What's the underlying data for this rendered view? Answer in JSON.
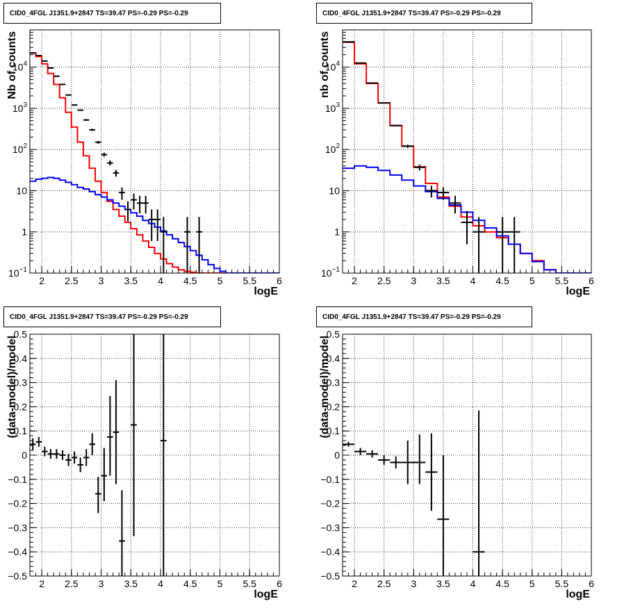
{
  "chart_data": [
    {
      "type": "histogram",
      "title": "CID0_4FGL J1351.9+2847 TS=39.47 PS=-0.29 PS=-0.29",
      "xlabel": "logE",
      "ylabel": "Nb of counts",
      "yscale": "log",
      "xlim": [
        1.8,
        6.0
      ],
      "ylim": [
        0.1,
        80000
      ],
      "grid": true,
      "x_ticks": [
        "2",
        "2.5",
        "3",
        "3.5",
        "4",
        "4.5",
        "5",
        "5.5",
        "6"
      ],
      "y_ticks": [
        "10^-1",
        "1",
        "10",
        "10^2",
        "10^3",
        "10^4"
      ],
      "y_tick_labels": [
        {
          "base": "10",
          "exp": "−1"
        },
        {
          "base": "1",
          "exp": ""
        },
        {
          "base": "10",
          "exp": ""
        },
        {
          "base": "10",
          "exp": "2"
        },
        {
          "base": "10",
          "exp": "3"
        },
        {
          "base": "10",
          "exp": "4"
        }
      ],
      "series": [
        {
          "kind": "step",
          "color": "#ff0000",
          "bin_edges": [
            1.8,
            1.9,
            2.0,
            2.1,
            2.2,
            2.3,
            2.4,
            2.5,
            2.6,
            2.7,
            2.8,
            2.9,
            3.0,
            3.1,
            3.2,
            3.3,
            3.4,
            3.5,
            3.6,
            3.7,
            3.8,
            3.9,
            4.0,
            4.1,
            4.2,
            4.3,
            4.4,
            4.5,
            4.6,
            4.7,
            4.8,
            4.9,
            5.0,
            5.1,
            5.2,
            5.3,
            5.4,
            5.5,
            5.6,
            5.7,
            5.8,
            5.9,
            6.0
          ],
          "values": [
            22000,
            18000,
            12000,
            7000,
            3800,
            1800,
            800,
            350,
            150,
            70,
            35,
            17,
            9,
            5.5,
            3.5,
            2.4,
            1.7,
            1.2,
            0.85,
            0.6,
            0.42,
            0.3,
            0.22,
            0.17,
            0.14,
            0.12,
            0.11,
            0.105,
            0.1,
            0.1,
            0.1,
            0.1,
            0.1,
            0.1,
            0.1,
            0.1,
            0.1,
            0.1,
            0.1,
            0.1,
            0.1,
            0.1
          ]
        },
        {
          "kind": "step",
          "color": "#0000ff",
          "bin_edges": [
            1.8,
            1.9,
            2.0,
            2.1,
            2.2,
            2.3,
            2.4,
            2.5,
            2.6,
            2.7,
            2.8,
            2.9,
            3.0,
            3.1,
            3.2,
            3.3,
            3.4,
            3.5,
            3.6,
            3.7,
            3.8,
            3.9,
            4.0,
            4.1,
            4.2,
            4.3,
            4.4,
            4.5,
            4.6,
            4.7,
            4.8,
            4.9,
            5.0,
            5.1,
            5.2,
            5.3,
            5.4,
            5.5,
            5.6,
            5.7,
            5.8,
            5.9,
            6.0
          ],
          "values": [
            17,
            19,
            20,
            21,
            20,
            18,
            16,
            14,
            12,
            11,
            9.5,
            8,
            7,
            6,
            5,
            4.2,
            3.5,
            2.9,
            2.4,
            1.9,
            1.6,
            1.3,
            1.05,
            0.85,
            0.68,
            0.55,
            0.44,
            0.35,
            0.27,
            0.21,
            0.16,
            0.13,
            0.11,
            0.1,
            0.1,
            0.1,
            0.1,
            0.1,
            0.1,
            0.1,
            0.1,
            0.1
          ]
        },
        {
          "kind": "errorbars",
          "color": "#000000",
          "points": [
            {
              "x": 1.85,
              "y": 22000,
              "xerr": 0.05,
              "ylo": 21700,
              "yhi": 22300
            },
            {
              "x": 1.95,
              "y": 19000,
              "xerr": 0.05,
              "ylo": 18700,
              "yhi": 19300
            },
            {
              "x": 2.05,
              "y": 14000,
              "xerr": 0.05,
              "ylo": 13800,
              "yhi": 14200
            },
            {
              "x": 2.15,
              "y": 9500,
              "xerr": 0.05,
              "ylo": 9300,
              "yhi": 9700
            },
            {
              "x": 2.25,
              "y": 6000,
              "xerr": 0.05,
              "ylo": 5850,
              "yhi": 6150
            },
            {
              "x": 2.35,
              "y": 3800,
              "xerr": 0.05,
              "ylo": 3700,
              "yhi": 3900
            },
            {
              "x": 2.45,
              "y": 2100,
              "xerr": 0.05,
              "ylo": 2050,
              "yhi": 2150
            },
            {
              "x": 2.55,
              "y": 1200,
              "xerr": 0.05,
              "ylo": 1160,
              "yhi": 1240
            },
            {
              "x": 2.65,
              "y": 900,
              "xerr": 0.05,
              "ylo": 870,
              "yhi": 930
            },
            {
              "x": 2.75,
              "y": 520,
              "xerr": 0.05,
              "ylo": 495,
              "yhi": 545
            },
            {
              "x": 2.85,
              "y": 300,
              "xerr": 0.05,
              "ylo": 283,
              "yhi": 317
            },
            {
              "x": 2.95,
              "y": 150,
              "xerr": 0.05,
              "ylo": 138,
              "yhi": 162
            },
            {
              "x": 3.05,
              "y": 75,
              "xerr": 0.05,
              "ylo": 67,
              "yhi": 84
            },
            {
              "x": 3.15,
              "y": 47,
              "xerr": 0.05,
              "ylo": 41,
              "yhi": 54
            },
            {
              "x": 3.25,
              "y": 27,
              "xerr": 0.05,
              "ylo": 22,
              "yhi": 32
            },
            {
              "x": 3.35,
              "y": 9,
              "xerr": 0.05,
              "ylo": 6,
              "yhi": 12
            },
            {
              "x": 3.45,
              "y": 3.5,
              "xerr": 0.05,
              "ylo": 1.8,
              "yhi": 5.5
            },
            {
              "x": 3.55,
              "y": 6,
              "xerr": 0.05,
              "ylo": 3.5,
              "yhi": 8.5
            },
            {
              "x": 3.65,
              "y": 5,
              "xerr": 0.05,
              "ylo": 2.8,
              "yhi": 7.5
            },
            {
              "x": 3.75,
              "y": 5,
              "xerr": 0.05,
              "ylo": 2.8,
              "yhi": 7.5
            },
            {
              "x": 3.85,
              "y": 2,
              "xerr": 0.05,
              "ylo": 0.6,
              "yhi": 3.5
            },
            {
              "x": 3.95,
              "y": 2,
              "xerr": 0.05,
              "ylo": 0.6,
              "yhi": 3.5
            },
            {
              "x": 4.05,
              "y": 1,
              "xerr": 0.05,
              "ylo": 0.1,
              "yhi": 2.3
            },
            {
              "x": 4.45,
              "y": 1,
              "xerr": 0.05,
              "ylo": 0.1,
              "yhi": 2.3
            },
            {
              "x": 4.65,
              "y": 1,
              "xerr": 0.05,
              "ylo": 0.1,
              "yhi": 2.3
            }
          ]
        }
      ]
    },
    {
      "type": "histogram",
      "title": "CID0_4FGL J1351.9+2847 TS=39.47 PS=-0.29 PS=-0.29",
      "xlabel": "logE",
      "ylabel": "nb of counts",
      "yscale": "log",
      "xlim": [
        1.8,
        6.0
      ],
      "ylim": [
        0.1,
        80000
      ],
      "grid": true,
      "x_ticks": [
        "2",
        "2.5",
        "3",
        "3.5",
        "4",
        "4.5",
        "5",
        "5.5",
        "6"
      ],
      "y_ticks": [
        "10^-1",
        "1",
        "10",
        "10^2",
        "10^3",
        "10^4"
      ],
      "y_tick_labels": [
        {
          "base": "10",
          "exp": "−1"
        },
        {
          "base": "1",
          "exp": ""
        },
        {
          "base": "10",
          "exp": ""
        },
        {
          "base": "10",
          "exp": "2"
        },
        {
          "base": "10",
          "exp": "3"
        },
        {
          "base": "10",
          "exp": "4"
        }
      ],
      "series": [
        {
          "kind": "step",
          "color": "#ff0000",
          "bin_edges": [
            1.8,
            2.0,
            2.2,
            2.4,
            2.6,
            2.8,
            3.0,
            3.2,
            3.4,
            3.6,
            3.8,
            4.0,
            4.2,
            4.4,
            4.6,
            4.8,
            5.0,
            5.2,
            5.4,
            5.6,
            5.8,
            6.0
          ],
          "values": [
            40000,
            12000,
            4000,
            1350,
            380,
            120,
            38,
            15,
            7,
            4.2,
            2.3,
            1.4,
            1.0,
            0.72,
            0.5,
            0.3,
            0.2,
            0.12,
            0.1,
            0.1,
            0.1
          ]
        },
        {
          "kind": "step",
          "color": "#0000ff",
          "bin_edges": [
            1.8,
            2.0,
            2.2,
            2.4,
            2.6,
            2.8,
            3.0,
            3.2,
            3.4,
            3.6,
            3.8,
            4.0,
            4.2,
            4.4,
            4.6,
            4.8,
            5.0,
            5.2,
            5.4,
            5.6,
            5.8,
            6.0
          ],
          "values": [
            35,
            40,
            37,
            31,
            24,
            18,
            13,
            9.5,
            6.5,
            4.5,
            3.0,
            1.9,
            1.25,
            0.8,
            0.5,
            0.3,
            0.19,
            0.12,
            0.1,
            0.1,
            0.1
          ]
        },
        {
          "kind": "errorbars",
          "color": "#000000",
          "points": [
            {
              "x": 1.9,
              "y": 41000,
              "xerr": 0.1,
              "ylo": 40500,
              "yhi": 41500
            },
            {
              "x": 2.1,
              "y": 12500,
              "xerr": 0.1,
              "ylo": 12300,
              "yhi": 12700
            },
            {
              "x": 2.3,
              "y": 4100,
              "xerr": 0.1,
              "ylo": 4000,
              "yhi": 4200
            },
            {
              "x": 2.5,
              "y": 1350,
              "xerr": 0.1,
              "ylo": 1310,
              "yhi": 1390
            },
            {
              "x": 2.7,
              "y": 380,
              "xerr": 0.1,
              "ylo": 362,
              "yhi": 398
            },
            {
              "x": 2.9,
              "y": 120,
              "xerr": 0.1,
              "ylo": 110,
              "yhi": 131
            },
            {
              "x": 3.1,
              "y": 37,
              "xerr": 0.1,
              "ylo": 31,
              "yhi": 43
            },
            {
              "x": 3.3,
              "y": 10,
              "xerr": 0.1,
              "ylo": 6.8,
              "yhi": 13.2
            },
            {
              "x": 3.5,
              "y": 9,
              "xerr": 0.1,
              "ylo": 6,
              "yhi": 12
            },
            {
              "x": 3.7,
              "y": 5,
              "xerr": 0.1,
              "ylo": 2.8,
              "yhi": 7.5
            },
            {
              "x": 3.9,
              "y": 1.7,
              "xerr": 0.1,
              "ylo": 0.5,
              "yhi": 3.2
            },
            {
              "x": 4.1,
              "y": 1,
              "xerr": 0.1,
              "ylo": 0.1,
              "yhi": 2.3
            },
            {
              "x": 4.5,
              "y": 1,
              "xerr": 0.1,
              "ylo": 0.1,
              "yhi": 2.3
            },
            {
              "x": 4.7,
              "y": 1,
              "xerr": 0.1,
              "ylo": 0.1,
              "yhi": 2.3
            }
          ]
        }
      ]
    },
    {
      "type": "scatter",
      "title": "CID0_4FGL J1351.9+2847 TS=39.47 PS=-0.29 PS=-0.29",
      "xlabel": "logE",
      "ylabel": "(data-model)/model",
      "yscale": "linear",
      "xlim": [
        1.8,
        6.0
      ],
      "ylim": [
        -0.5,
        0.5
      ],
      "grid": true,
      "x_ticks": [
        "2",
        "2.5",
        "3",
        "3.5",
        "4",
        "4.5",
        "5",
        "5.5",
        "6"
      ],
      "y_ticks": [
        "−0.5",
        "−0.4",
        "−0.3",
        "−0.2",
        "−0.1",
        "0",
        "0.1",
        "0.2",
        "0.3",
        "0.4",
        "0.5"
      ],
      "series": [
        {
          "kind": "errorbars",
          "color": "#000000",
          "points": [
            {
              "x": 1.85,
              "y": 0.045,
              "xerr": 0.05,
              "ylo": 0.02,
              "yhi": 0.07
            },
            {
              "x": 1.95,
              "y": 0.055,
              "xerr": 0.05,
              "ylo": 0.035,
              "yhi": 0.075
            },
            {
              "x": 2.05,
              "y": 0.015,
              "xerr": 0.05,
              "ylo": -0.005,
              "yhi": 0.035
            },
            {
              "x": 2.15,
              "y": 0.005,
              "xerr": 0.05,
              "ylo": -0.015,
              "yhi": 0.025
            },
            {
              "x": 2.25,
              "y": 0.005,
              "xerr": 0.05,
              "ylo": -0.015,
              "yhi": 0.025
            },
            {
              "x": 2.35,
              "y": 0.0,
              "xerr": 0.05,
              "ylo": -0.02,
              "yhi": 0.02
            },
            {
              "x": 2.45,
              "y": -0.02,
              "xerr": 0.05,
              "ylo": -0.045,
              "yhi": 0.005
            },
            {
              "x": 2.55,
              "y": -0.01,
              "xerr": 0.05,
              "ylo": -0.035,
              "yhi": 0.015
            },
            {
              "x": 2.65,
              "y": -0.04,
              "xerr": 0.05,
              "ylo": -0.07,
              "yhi": -0.01
            },
            {
              "x": 2.75,
              "y": -0.01,
              "xerr": 0.05,
              "ylo": -0.045,
              "yhi": 0.025
            },
            {
              "x": 2.85,
              "y": 0.045,
              "xerr": 0.05,
              "ylo": 0.0,
              "yhi": 0.09
            },
            {
              "x": 2.95,
              "y": -0.16,
              "xerr": 0.05,
              "ylo": -0.24,
              "yhi": -0.09
            },
            {
              "x": 3.05,
              "y": -0.085,
              "xerr": 0.05,
              "ylo": -0.19,
              "yhi": 0.03
            },
            {
              "x": 3.15,
              "y": 0.075,
              "xerr": 0.05,
              "ylo": -0.085,
              "yhi": 0.245
            },
            {
              "x": 3.25,
              "y": 0.095,
              "xerr": 0.05,
              "ylo": -0.12,
              "yhi": 0.31
            },
            {
              "x": 3.35,
              "y": -0.355,
              "xerr": 0.05,
              "ylo": -0.5,
              "yhi": -0.145
            },
            {
              "x": 3.55,
              "y": 0.125,
              "xerr": 0.05,
              "ylo": -0.335,
              "yhi": 0.5
            },
            {
              "x": 4.05,
              "y": 0.06,
              "xerr": 0.05,
              "ylo": -0.5,
              "yhi": 0.5
            }
          ]
        }
      ]
    },
    {
      "type": "scatter",
      "title": "CID0_4FGL J1351.9+2847 TS=39.47 PS=-0.29 PS=-0.29",
      "xlabel": "logE",
      "ylabel": "(data-model)/model",
      "yscale": "linear",
      "xlim": [
        1.8,
        6.0
      ],
      "ylim": [
        -0.5,
        0.5
      ],
      "grid": true,
      "x_ticks": [
        "2",
        "2.5",
        "3",
        "3.5",
        "4",
        "4.5",
        "5",
        "5.5",
        "6"
      ],
      "y_ticks": [
        "−0.5",
        "−0.4",
        "−0.3",
        "−0.2",
        "−0.1",
        "0",
        "0.1",
        "0.2",
        "0.3",
        "0.4",
        "0.5"
      ],
      "series": [
        {
          "kind": "errorbars",
          "color": "#000000",
          "points": [
            {
              "x": 1.9,
              "y": 0.045,
              "xerr": 0.1,
              "ylo": 0.035,
              "yhi": 0.055
            },
            {
              "x": 2.1,
              "y": 0.015,
              "xerr": 0.1,
              "ylo": 0.0,
              "yhi": 0.03
            },
            {
              "x": 2.3,
              "y": 0.005,
              "xerr": 0.1,
              "ylo": -0.01,
              "yhi": 0.02
            },
            {
              "x": 2.5,
              "y": -0.02,
              "xerr": 0.1,
              "ylo": -0.04,
              "yhi": 0.0
            },
            {
              "x": 2.7,
              "y": -0.03,
              "xerr": 0.1,
              "ylo": -0.055,
              "yhi": -0.005
            },
            {
              "x": 2.9,
              "y": -0.03,
              "xerr": 0.1,
              "ylo": -0.12,
              "yhi": 0.06
            },
            {
              "x": 3.1,
              "y": -0.03,
              "xerr": 0.1,
              "ylo": -0.12,
              "yhi": 0.085
            },
            {
              "x": 3.3,
              "y": -0.07,
              "xerr": 0.1,
              "ylo": -0.23,
              "yhi": 0.09
            },
            {
              "x": 3.5,
              "y": -0.265,
              "xerr": 0.1,
              "ylo": -0.5,
              "yhi": 0.0
            },
            {
              "x": 4.1,
              "y": -0.4,
              "xerr": 0.1,
              "ylo": -0.5,
              "yhi": 0.185
            }
          ]
        }
      ]
    }
  ]
}
